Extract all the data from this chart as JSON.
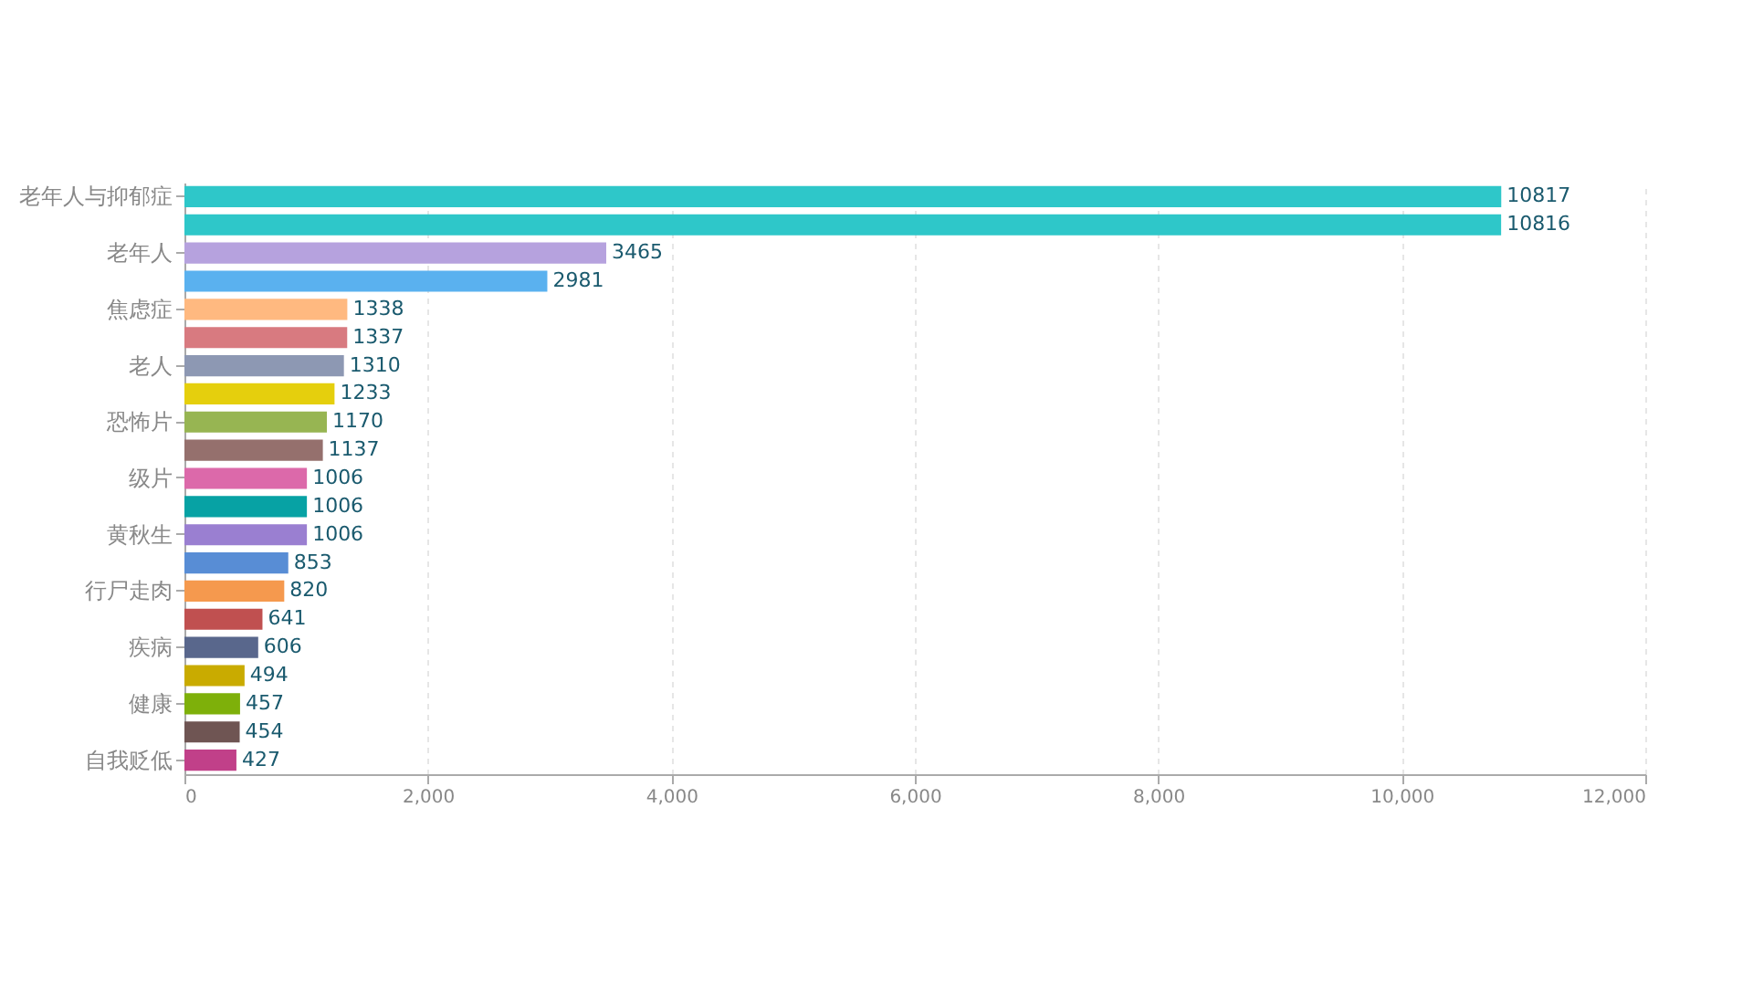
{
  "chart_data": {
    "type": "bar",
    "orientation": "horizontal",
    "data_labels": true,
    "grid": "x",
    "categories": [
      "老年人与抑郁症",
      null,
      "老年人",
      null,
      "焦虑症",
      null,
      "老人",
      null,
      "恐怖片",
      null,
      "级片",
      null,
      "黄秋生",
      null,
      "行尸走肉",
      null,
      "疾病",
      null,
      "健康",
      null,
      "自我贬低"
    ],
    "values": [
      10817,
      10816,
      3465,
      2981,
      1338,
      1337,
      1310,
      1233,
      1170,
      1137,
      1006,
      1006,
      1006,
      853,
      820,
      641,
      606,
      494,
      457,
      454,
      427
    ],
    "colors": [
      "#2ec7c9",
      "#2ec7c9",
      "#b6a2de",
      "#5ab1ef",
      "#ffb980",
      "#d87a80",
      "#8d98b3",
      "#e5cf0d",
      "#97b552",
      "#95706d",
      "#dc69aa",
      "#07a2a4",
      "#9a7fd1",
      "#588dd5",
      "#f5994e",
      "#c05050",
      "#59678c",
      "#c9ab00",
      "#7eb00a",
      "#6f5553",
      "#c14089"
    ],
    "xlim": [
      0,
      12000
    ],
    "xticks": [
      0,
      {
        "value": 2000,
        "label": "2,000"
      },
      {
        "value": 4000,
        "label": "4,000"
      },
      {
        "value": 6000,
        "label": "6,000"
      },
      {
        "value": 8000,
        "label": "8,000"
      },
      {
        "value": 10000,
        "label": "10,000"
      },
      {
        "value": 12000,
        "label": "12,000"
      }
    ]
  }
}
